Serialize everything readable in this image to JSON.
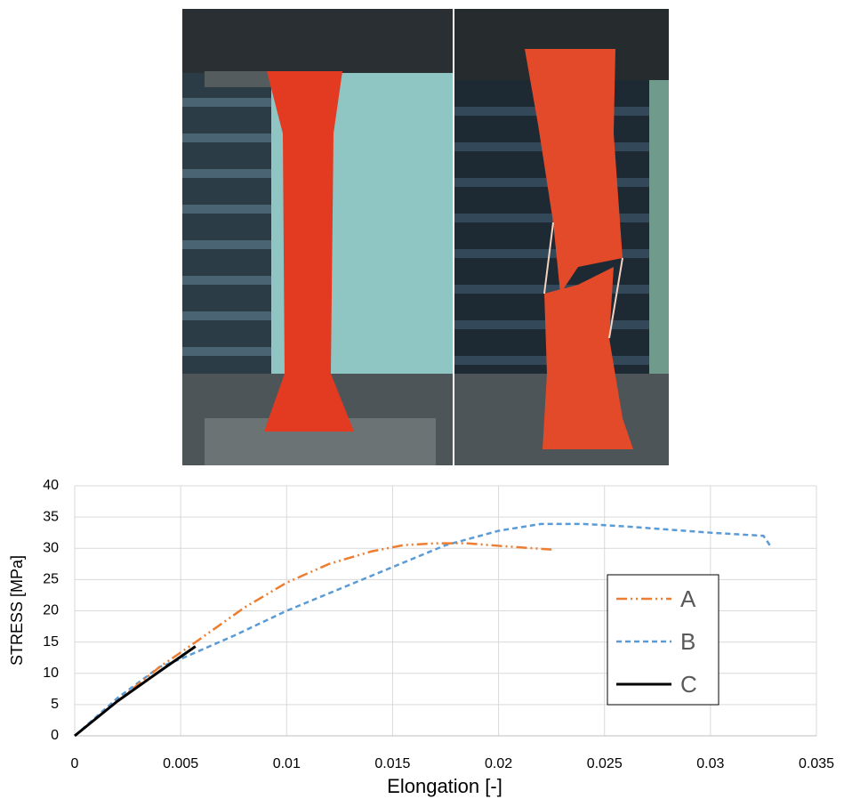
{
  "chart_data": {
    "type": "line",
    "xlabel": "Elongation [-]",
    "ylabel": "STRESS [MPa]",
    "xlim": [
      0,
      0.035
    ],
    "xticks": [
      0,
      0.005,
      0.01,
      0.015,
      0.02,
      0.025,
      0.03,
      0.035
    ],
    "ylim": [
      0,
      40
    ],
    "yticks": [
      0,
      5,
      10,
      15,
      20,
      25,
      30,
      35,
      40
    ],
    "grid": true,
    "legend": "right",
    "series": [
      {
        "name": "A",
        "color": "#ed7d31",
        "line_style": "dash-dot-dot",
        "x": [
          0,
          0.002,
          0.004,
          0.0055,
          0.008,
          0.01,
          0.012,
          0.014,
          0.0155,
          0.017,
          0.0185,
          0.02,
          0.0225
        ],
        "values": [
          0,
          5.5,
          11,
          14.5,
          20.5,
          24.5,
          27.5,
          29.5,
          30.5,
          30.8,
          30.8,
          30.4,
          29.8
        ]
      },
      {
        "name": "B",
        "color": "#5b9bd5",
        "line_style": "dashed",
        "x": [
          0,
          0.002,
          0.004,
          0.005,
          0.0075,
          0.01,
          0.0125,
          0.015,
          0.0175,
          0.02,
          0.022,
          0.024,
          0.026,
          0.028,
          0.03,
          0.0325,
          0.0328
        ],
        "values": [
          0,
          6,
          11,
          12.3,
          16,
          20,
          23.5,
          27,
          30.5,
          32.8,
          33.9,
          33.9,
          33.5,
          33,
          32.5,
          32,
          30.5
        ]
      },
      {
        "name": "C",
        "color": "#000000",
        "line_style": "solid",
        "x": [
          0,
          0.002,
          0.004,
          0.0057
        ],
        "values": [
          0,
          5.5,
          10.3,
          14.3
        ]
      }
    ]
  }
}
